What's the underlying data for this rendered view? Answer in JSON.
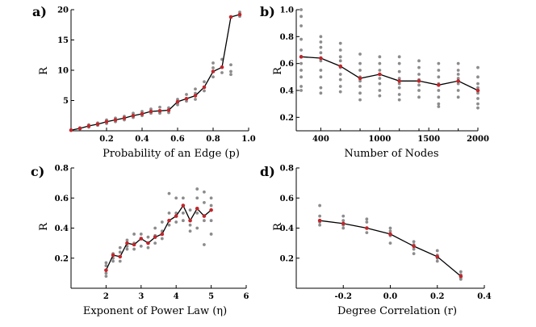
{
  "chart_data": [
    {
      "type": "scatter",
      "panel_label": "a)",
      "xlabel": "Probability of an Edge (p)",
      "ylabel": "R",
      "xlim": [
        0,
        1.0
      ],
      "ylim": [
        0,
        20
      ],
      "x_ticks": [
        0.2,
        0.4,
        0.6,
        0.8,
        1.0
      ],
      "x_tick_labels": [
        "0.2",
        "0.4",
        "0.6",
        "0.8",
        "1.0"
      ],
      "y_ticks": [
        5,
        10,
        15,
        20
      ],
      "y_tick_labels": [
        "5",
        "10",
        "15",
        "20"
      ],
      "series": [
        {
          "x": [
            0.0,
            0.05,
            0.1,
            0.15,
            0.2,
            0.25,
            0.3,
            0.35,
            0.4,
            0.45,
            0.5,
            0.55,
            0.6,
            0.65,
            0.7,
            0.75,
            0.8,
            0.85,
            0.9,
            0.95
          ],
          "values": [
            0.1,
            0.4,
            0.8,
            1.1,
            1.5,
            1.8,
            2.1,
            2.5,
            2.8,
            3.2,
            3.3,
            3.4,
            4.8,
            5.3,
            5.8,
            7.2,
            9.8,
            10.5,
            18.8,
            19.2
          ]
        }
      ],
      "raw_points": [
        [
          0.05,
          0.5
        ],
        [
          0.05,
          0.3
        ],
        [
          0.1,
          1.0
        ],
        [
          0.1,
          0.6
        ],
        [
          0.15,
          1.3
        ],
        [
          0.15,
          0.9
        ],
        [
          0.2,
          1.8
        ],
        [
          0.2,
          1.2
        ],
        [
          0.25,
          2.1
        ],
        [
          0.25,
          1.5
        ],
        [
          0.3,
          2.4
        ],
        [
          0.3,
          1.8
        ],
        [
          0.35,
          2.9
        ],
        [
          0.35,
          2.2
        ],
        [
          0.4,
          3.2
        ],
        [
          0.4,
          2.5
        ],
        [
          0.45,
          3.6
        ],
        [
          0.45,
          2.9
        ],
        [
          0.5,
          3.9
        ],
        [
          0.5,
          2.9
        ],
        [
          0.55,
          3.8
        ],
        [
          0.55,
          3.0
        ],
        [
          0.6,
          5.2
        ],
        [
          0.6,
          4.3
        ],
        [
          0.65,
          6.0
        ],
        [
          0.65,
          4.9
        ],
        [
          0.7,
          6.9
        ],
        [
          0.7,
          5.2
        ],
        [
          0.75,
          8.1
        ],
        [
          0.75,
          6.6
        ],
        [
          0.8,
          11.2
        ],
        [
          0.8,
          8.9
        ],
        [
          0.85,
          11.8
        ],
        [
          0.85,
          9.6
        ],
        [
          0.9,
          10.9
        ],
        [
          0.9,
          9.3
        ],
        [
          0.95,
          19.6
        ],
        [
          0.95,
          18.9
        ],
        [
          0.2,
          1.6
        ],
        [
          0.3,
          2.0
        ],
        [
          0.4,
          2.7
        ],
        [
          0.5,
          3.1
        ],
        [
          0.6,
          4.6
        ],
        [
          0.7,
          6.2
        ],
        [
          0.8,
          10.4
        ],
        [
          0.9,
          9.8
        ]
      ]
    },
    {
      "type": "scatter",
      "panel_label": "b)",
      "xlabel": "Number of Nodes",
      "ylabel": "R",
      "xlim": [
        150,
        2000
      ],
      "ylim": [
        0.1,
        1.0
      ],
      "x_ticks": [
        400,
        1000,
        1500,
        2000
      ],
      "x_tick_labels": [
        "400",
        "1000",
        "1500",
        "2000"
      ],
      "extra_x_tick_marks": [
        600,
        800,
        1200,
        1400,
        1600,
        1800
      ],
      "y_ticks": [
        0.2,
        0.4,
        0.6,
        0.8,
        1.0
      ],
      "y_tick_labels": [
        "0.2",
        "0.4",
        "0.6",
        "0.8",
        "1.0"
      ],
      "series": [
        {
          "x": [
            200,
            400,
            600,
            800,
            1000,
            1200,
            1400,
            1600,
            1800,
            2000
          ],
          "values": [
            0.65,
            0.64,
            0.58,
            0.49,
            0.52,
            0.47,
            0.47,
            0.44,
            0.47,
            0.4
          ]
        }
      ],
      "raw_points": [
        [
          200,
          1.0
        ],
        [
          200,
          0.95
        ],
        [
          200,
          0.88
        ],
        [
          200,
          0.78
        ],
        [
          200,
          0.7
        ],
        [
          200,
          0.6
        ],
        [
          200,
          0.55
        ],
        [
          200,
          0.5
        ],
        [
          200,
          0.43
        ],
        [
          200,
          0.4
        ],
        [
          400,
          0.8
        ],
        [
          400,
          0.76
        ],
        [
          400,
          0.72
        ],
        [
          400,
          0.68
        ],
        [
          400,
          0.62
        ],
        [
          400,
          0.55
        ],
        [
          400,
          0.5
        ],
        [
          400,
          0.42
        ],
        [
          400,
          0.38
        ],
        [
          600,
          0.75
        ],
        [
          600,
          0.7
        ],
        [
          600,
          0.65
        ],
        [
          600,
          0.62
        ],
        [
          600,
          0.57
        ],
        [
          600,
          0.52
        ],
        [
          600,
          0.48
        ],
        [
          600,
          0.43
        ],
        [
          600,
          0.39
        ],
        [
          800,
          0.67
        ],
        [
          800,
          0.6
        ],
        [
          800,
          0.55
        ],
        [
          800,
          0.5
        ],
        [
          800,
          0.47
        ],
        [
          800,
          0.43
        ],
        [
          800,
          0.38
        ],
        [
          800,
          0.33
        ],
        [
          1000,
          0.65
        ],
        [
          1000,
          0.6
        ],
        [
          1000,
          0.55
        ],
        [
          1000,
          0.52
        ],
        [
          1000,
          0.49
        ],
        [
          1000,
          0.45
        ],
        [
          1000,
          0.4
        ],
        [
          1000,
          0.36
        ],
        [
          1200,
          0.65
        ],
        [
          1200,
          0.6
        ],
        [
          1200,
          0.54
        ],
        [
          1200,
          0.49
        ],
        [
          1200,
          0.45
        ],
        [
          1200,
          0.42
        ],
        [
          1200,
          0.37
        ],
        [
          1200,
          0.33
        ],
        [
          1400,
          0.62
        ],
        [
          1400,
          0.57
        ],
        [
          1400,
          0.52
        ],
        [
          1400,
          0.48
        ],
        [
          1400,
          0.44
        ],
        [
          1400,
          0.4
        ],
        [
          1400,
          0.35
        ],
        [
          1600,
          0.6
        ],
        [
          1600,
          0.55
        ],
        [
          1600,
          0.5
        ],
        [
          1600,
          0.45
        ],
        [
          1600,
          0.4
        ],
        [
          1600,
          0.35
        ],
        [
          1600,
          0.3
        ],
        [
          1600,
          0.28
        ],
        [
          1800,
          0.6
        ],
        [
          1800,
          0.55
        ],
        [
          1800,
          0.52
        ],
        [
          1800,
          0.49
        ],
        [
          1800,
          0.45
        ],
        [
          1800,
          0.4
        ],
        [
          1800,
          0.35
        ],
        [
          2000,
          0.57
        ],
        [
          2000,
          0.5
        ],
        [
          2000,
          0.45
        ],
        [
          2000,
          0.42
        ],
        [
          2000,
          0.38
        ],
        [
          2000,
          0.34
        ],
        [
          2000,
          0.3
        ],
        [
          2000,
          0.27
        ]
      ]
    },
    {
      "type": "scatter",
      "panel_label": "c)",
      "xlabel": "Exponent of Power Law (η)",
      "ylabel": "R",
      "xlim": [
        1,
        6
      ],
      "ylim": [
        0.0,
        0.8
      ],
      "x_ticks": [
        2,
        3,
        4,
        5,
        6
      ],
      "x_tick_labels": [
        "2",
        "3",
        "4",
        "5",
        "6"
      ],
      "y_ticks": [
        0.2,
        0.4,
        0.6,
        0.8
      ],
      "y_tick_labels": [
        "0.2",
        "0.4",
        "0.6",
        "0.8"
      ],
      "series": [
        {
          "x": [
            2.0,
            2.2,
            2.4,
            2.6,
            2.8,
            3.0,
            3.2,
            3.4,
            3.6,
            3.8,
            4.0,
            4.2,
            4.4,
            4.6,
            4.8,
            5.0
          ],
          "values": [
            0.12,
            0.22,
            0.21,
            0.3,
            0.29,
            0.33,
            0.3,
            0.34,
            0.36,
            0.45,
            0.48,
            0.55,
            0.45,
            0.53,
            0.48,
            0.52
          ]
        }
      ],
      "raw_points": [
        [
          2.0,
          0.17
        ],
        [
          2.0,
          0.15
        ],
        [
          2.0,
          0.1
        ],
        [
          2.0,
          0.08
        ],
        [
          2.2,
          0.23
        ],
        [
          2.2,
          0.18
        ],
        [
          2.2,
          0.2
        ],
        [
          2.4,
          0.27
        ],
        [
          2.4,
          0.24
        ],
        [
          2.4,
          0.18
        ],
        [
          2.6,
          0.32
        ],
        [
          2.6,
          0.28
        ],
        [
          2.6,
          0.26
        ],
        [
          2.8,
          0.36
        ],
        [
          2.8,
          0.3
        ],
        [
          2.8,
          0.26
        ],
        [
          3.0,
          0.36
        ],
        [
          3.0,
          0.33
        ],
        [
          3.0,
          0.28
        ],
        [
          3.2,
          0.34
        ],
        [
          3.2,
          0.3
        ],
        [
          3.2,
          0.27
        ],
        [
          3.4,
          0.4
        ],
        [
          3.4,
          0.35
        ],
        [
          3.4,
          0.3
        ],
        [
          3.6,
          0.44
        ],
        [
          3.6,
          0.38
        ],
        [
          3.6,
          0.33
        ],
        [
          3.8,
          0.63
        ],
        [
          3.8,
          0.5
        ],
        [
          3.8,
          0.42
        ],
        [
          4.0,
          0.6
        ],
        [
          4.0,
          0.5
        ],
        [
          4.0,
          0.44
        ],
        [
          4.2,
          0.6
        ],
        [
          4.2,
          0.5
        ],
        [
          4.2,
          0.45
        ],
        [
          4.4,
          0.52
        ],
        [
          4.4,
          0.42
        ],
        [
          4.4,
          0.38
        ],
        [
          4.6,
          0.66
        ],
        [
          4.6,
          0.6
        ],
        [
          4.6,
          0.5
        ],
        [
          4.6,
          0.4
        ],
        [
          4.8,
          0.64
        ],
        [
          4.8,
          0.57
        ],
        [
          4.8,
          0.45
        ],
        [
          4.8,
          0.29
        ],
        [
          5.0,
          0.6
        ],
        [
          5.0,
          0.55
        ],
        [
          5.0,
          0.45
        ],
        [
          5.0,
          0.36
        ]
      ]
    },
    {
      "type": "scatter",
      "panel_label": "d)",
      "xlabel": "Degree Correlation (r)",
      "ylabel": "R",
      "xlim": [
        -0.4,
        0.4
      ],
      "ylim": [
        0.0,
        0.8
      ],
      "x_ticks": [
        -0.2,
        0.0,
        0.2,
        0.4
      ],
      "x_tick_labels": [
        "-0.2",
        "0.0",
        "0.2",
        "0.4"
      ],
      "y_ticks": [
        0.2,
        0.4,
        0.6,
        0.8
      ],
      "y_tick_labels": [
        "0.2",
        "0.4",
        "0.6",
        "0.8"
      ],
      "series": [
        {
          "x": [
            -0.3,
            -0.2,
            -0.1,
            0.0,
            0.1,
            0.2,
            0.3
          ],
          "values": [
            0.45,
            0.43,
            0.4,
            0.36,
            0.28,
            0.21,
            0.08
          ]
        }
      ],
      "raw_points": [
        [
          -0.3,
          0.55
        ],
        [
          -0.3,
          0.48
        ],
        [
          -0.3,
          0.44
        ],
        [
          -0.3,
          0.42
        ],
        [
          -0.2,
          0.48
        ],
        [
          -0.2,
          0.45
        ],
        [
          -0.2,
          0.42
        ],
        [
          -0.2,
          0.4
        ],
        [
          -0.1,
          0.46
        ],
        [
          -0.1,
          0.44
        ],
        [
          -0.1,
          0.4
        ],
        [
          -0.1,
          0.37
        ],
        [
          0.0,
          0.4
        ],
        [
          0.0,
          0.38
        ],
        [
          0.0,
          0.35
        ],
        [
          0.0,
          0.3
        ],
        [
          0.1,
          0.31
        ],
        [
          0.1,
          0.29
        ],
        [
          0.1,
          0.26
        ],
        [
          0.1,
          0.23
        ],
        [
          0.2,
          0.25
        ],
        [
          0.2,
          0.22
        ],
        [
          0.2,
          0.2
        ],
        [
          0.2,
          0.18
        ],
        [
          0.3,
          0.11
        ],
        [
          0.3,
          0.09
        ],
        [
          0.3,
          0.07
        ],
        [
          0.3,
          0.06
        ]
      ]
    }
  ]
}
